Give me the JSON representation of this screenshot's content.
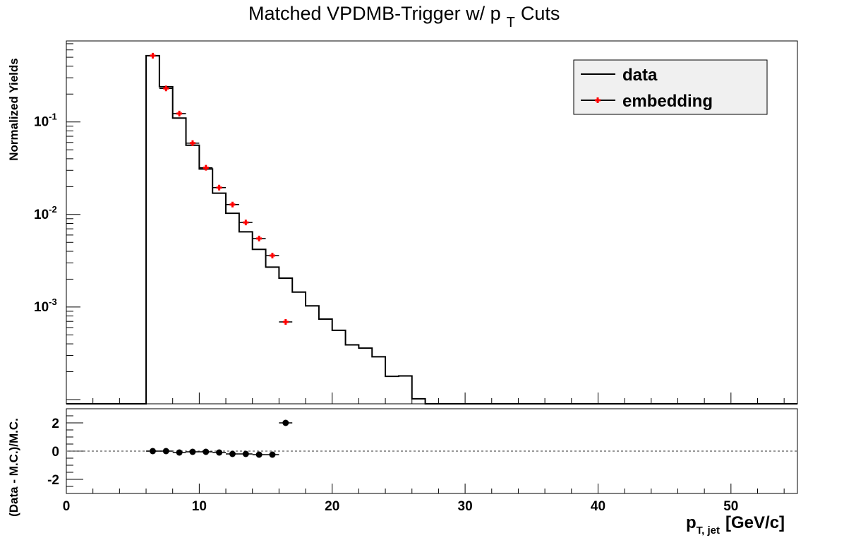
{
  "chart_data": [
    {
      "type": "line",
      "title": "Matched VPDMB-Trigger w/ p",
      "title_sub": "T",
      "title_tail": "Cuts",
      "ylabel": "Normalized Yields",
      "yscale": "log",
      "ylim": [
        9e-05,
        0.75
      ],
      "xlim": [
        0,
        55
      ],
      "grid": false,
      "legend_position": "top-right",
      "y_ticks": [
        {
          "value": 0.1,
          "base": "10",
          "exp": "-1"
        },
        {
          "value": 0.01,
          "base": "10",
          "exp": "-2"
        },
        {
          "value": 0.001,
          "base": "10",
          "exp": "-3"
        }
      ],
      "legend": [
        {
          "label": "data",
          "style": "line"
        },
        {
          "label": "embedding",
          "style": "marker"
        }
      ],
      "series": [
        {
          "name": "data",
          "style": "step",
          "color": "#000000",
          "bin_edges": [
            0,
            6,
            7,
            8,
            9,
            10,
            11,
            12,
            13,
            14,
            15,
            16,
            17,
            18,
            19,
            20,
            21,
            22,
            23,
            24,
            25,
            26,
            27,
            55
          ],
          "values": [
            9e-05,
            0.52,
            0.24,
            0.11,
            0.056,
            0.031,
            0.017,
            0.0103,
            0.0065,
            0.0042,
            0.0027,
            0.00205,
            0.00145,
            0.00103,
            0.00074,
            0.00056,
            0.00039,
            0.00036,
            0.00029,
            0.000178,
            0.00018,
            0.000102,
            9e-05
          ]
        },
        {
          "name": "embedding",
          "style": "marker",
          "color": "#ff0000",
          "x": [
            6.5,
            7.5,
            8.5,
            9.5,
            10.5,
            11.5,
            12.5,
            13.5,
            14.5,
            15.5,
            16.5
          ],
          "values": [
            0.52,
            0.23,
            0.123,
            0.059,
            0.032,
            0.0195,
            0.0128,
            0.0082,
            0.0055,
            0.0036,
            0.00069
          ]
        }
      ]
    },
    {
      "type": "scatter",
      "ylabel": "(Data - M.C.)/M.C.",
      "xlabel": "p",
      "xlabel_sub": "T, jet",
      "xlabel_tail": "[GeV/c]",
      "xlim": [
        0,
        55
      ],
      "ylim": [
        -3,
        3
      ],
      "grid": false,
      "reference_line": 0,
      "x_ticks": [
        0,
        10,
        20,
        30,
        40,
        50
      ],
      "y_ticks": [
        2,
        0,
        -2
      ],
      "series": [
        {
          "color": "#000000",
          "x": [
            6.5,
            7.5,
            8.5,
            9.5,
            10.5,
            11.5,
            12.5,
            13.5,
            14.5,
            15.5,
            16.5
          ],
          "values": [
            0.0,
            0.0,
            -0.1,
            -0.05,
            -0.05,
            -0.1,
            -0.2,
            -0.2,
            -0.25,
            -0.25,
            2.0
          ]
        }
      ]
    }
  ]
}
